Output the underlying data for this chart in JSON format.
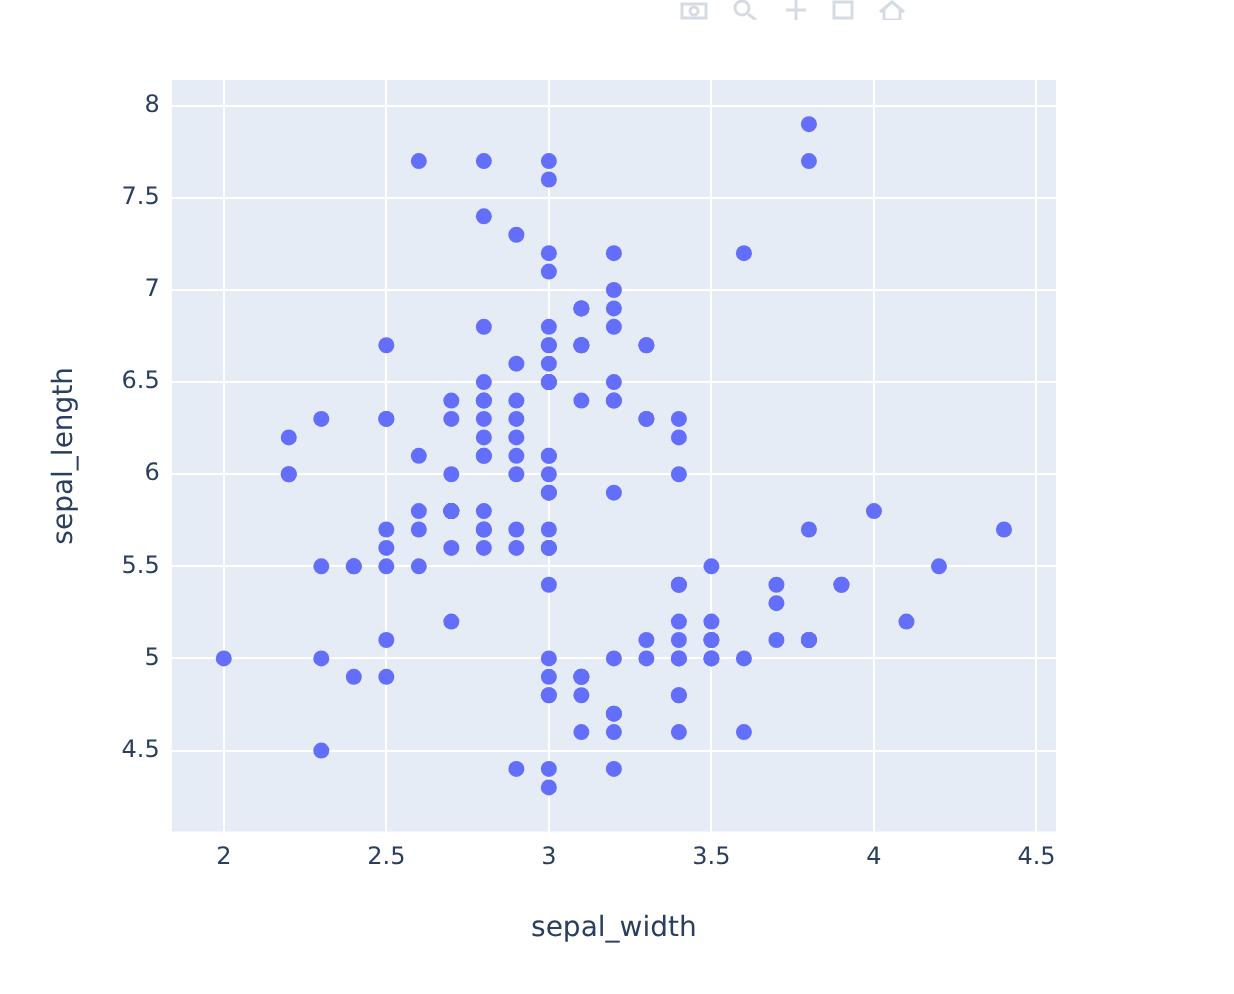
{
  "chart_data": {
    "type": "scatter",
    "xlabel": "sepal_width",
    "ylabel": "sepal_length",
    "xlim": [
      1.84,
      4.56
    ],
    "ylim": [
      4.06,
      8.14
    ],
    "xticks": [
      2,
      2.5,
      3,
      3.5,
      4,
      4.5
    ],
    "yticks": [
      4.5,
      5,
      5.5,
      6,
      6.5,
      7,
      7.5,
      8
    ],
    "grid": true,
    "marker": "circle",
    "legend": false,
    "series": [
      {
        "color": "#636efa",
        "x": [
          3.5,
          3.0,
          3.2,
          3.1,
          3.6,
          3.9,
          3.4,
          3.4,
          2.9,
          3.1,
          3.7,
          3.4,
          3.0,
          3.0,
          4.0,
          4.4,
          3.9,
          3.5,
          3.8,
          3.8,
          3.4,
          3.7,
          3.6,
          3.3,
          3.4,
          3.0,
          3.4,
          3.5,
          3.4,
          3.2,
          3.1,
          3.4,
          4.1,
          4.2,
          3.1,
          3.2,
          3.5,
          3.1,
          3.0,
          3.4,
          3.5,
          2.3,
          3.2,
          3.5,
          3.8,
          3.0,
          3.8,
          3.2,
          3.7,
          3.3,
          3.2,
          3.2,
          3.1,
          2.3,
          2.8,
          2.8,
          3.3,
          2.4,
          2.9,
          2.7,
          2.0,
          3.0,
          2.2,
          2.9,
          2.9,
          3.1,
          3.0,
          2.7,
          2.2,
          2.5,
          3.2,
          2.8,
          2.5,
          2.8,
          2.9,
          3.0,
          2.8,
          3.0,
          2.9,
          2.6,
          2.4,
          2.4,
          2.7,
          2.7,
          3.0,
          3.4,
          3.1,
          2.3,
          3.0,
          2.5,
          2.6,
          3.0,
          2.6,
          2.3,
          2.7,
          3.0,
          2.9,
          2.9,
          2.5,
          2.8,
          3.3,
          2.7,
          3.0,
          2.9,
          3.0,
          3.0,
          2.5,
          2.9,
          2.5,
          3.6,
          3.2,
          2.7,
          3.0,
          2.5,
          2.8,
          3.2,
          3.0,
          3.8,
          2.6,
          2.2,
          3.2,
          2.8,
          2.8,
          2.7,
          3.3,
          3.2,
          2.8,
          3.0,
          2.8,
          3.0,
          2.8,
          3.8,
          2.8,
          2.8,
          2.6,
          3.0,
          3.4,
          3.1,
          3.0,
          3.1,
          3.1,
          3.1,
          2.7,
          3.2,
          3.3,
          3.0,
          2.5,
          3.0,
          3.4,
          3.0
        ],
        "values": [
          5.1,
          4.9,
          4.7,
          4.6,
          5.0,
          5.4,
          4.6,
          5.0,
          4.4,
          4.9,
          5.4,
          4.8,
          4.8,
          4.3,
          5.8,
          5.7,
          5.4,
          5.1,
          5.7,
          5.1,
          5.4,
          5.1,
          4.6,
          5.1,
          4.8,
          5.0,
          5.0,
          5.2,
          5.2,
          4.7,
          4.8,
          5.4,
          5.2,
          5.5,
          4.9,
          5.0,
          5.5,
          4.9,
          4.4,
          5.1,
          5.0,
          4.5,
          4.4,
          5.0,
          5.1,
          4.8,
          5.1,
          4.6,
          5.3,
          5.0,
          7.0,
          6.4,
          6.9,
          5.5,
          6.5,
          5.7,
          6.3,
          4.9,
          6.6,
          5.2,
          5.0,
          5.9,
          6.0,
          6.1,
          5.6,
          6.7,
          5.6,
          5.8,
          6.2,
          5.6,
          5.9,
          6.1,
          6.3,
          6.1,
          6.4,
          6.6,
          6.8,
          6.7,
          6.0,
          5.7,
          5.5,
          5.5,
          5.8,
          6.0,
          5.4,
          6.0,
          6.7,
          6.3,
          5.6,
          5.5,
          5.5,
          6.1,
          5.8,
          5.0,
          5.6,
          5.7,
          5.7,
          6.2,
          5.1,
          5.7,
          6.3,
          5.8,
          7.1,
          6.3,
          6.5,
          7.6,
          4.9,
          7.3,
          6.7,
          7.2,
          6.5,
          6.4,
          6.8,
          5.7,
          5.8,
          6.4,
          6.5,
          7.7,
          7.7,
          6.0,
          6.9,
          5.6,
          7.7,
          6.3,
          6.7,
          7.2,
          6.2,
          6.1,
          6.4,
          7.2,
          7.4,
          7.9,
          6.4,
          6.3,
          6.1,
          7.7,
          6.3,
          6.4,
          6.0,
          6.9,
          6.7,
          6.9,
          5.8,
          6.8,
          6.7,
          6.7,
          6.3,
          6.5,
          6.2,
          5.9
        ]
      }
    ]
  }
}
